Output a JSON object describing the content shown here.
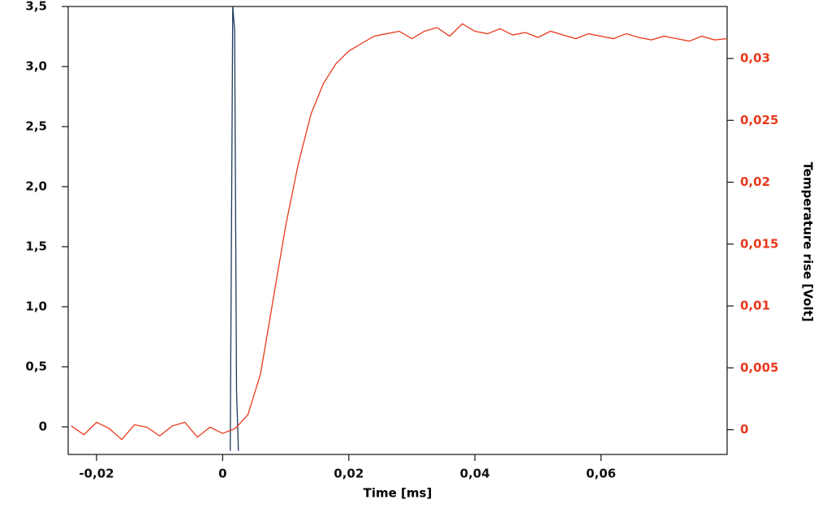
{
  "chart_data": {
    "type": "line",
    "x_label": "Time [ms]",
    "y2_label": "Temperature rise [Volt]",
    "xlim": [
      -0.0245,
      0.08
    ],
    "ylim": [
      -0.23,
      3.5
    ],
    "y2lim": [
      -0.002,
      0.0342
    ],
    "xticks": [
      {
        "value": -0.02,
        "label": "-0,02"
      },
      0,
      {
        "value": 0.02,
        "label": "0,02"
      },
      {
        "value": 0.04,
        "label": "0,04"
      },
      {
        "value": 0.06,
        "label": "0,06"
      }
    ],
    "yticks": [
      0,
      {
        "value": 0.5,
        "label": "0,5"
      },
      {
        "value": 1,
        "label": "1,0"
      },
      {
        "value": 1.5,
        "label": "1,5"
      },
      {
        "value": 2,
        "label": "2,0"
      },
      {
        "value": 2.5,
        "label": "2,5"
      },
      {
        "value": 3,
        "label": "3,0"
      },
      {
        "value": 3.5,
        "label": "3,5"
      }
    ],
    "y2ticks": [
      0,
      {
        "value": 0.005,
        "label": "0,005"
      },
      {
        "value": 0.01,
        "label": "0,01"
      },
      {
        "value": 0.015,
        "label": "0,015"
      },
      {
        "value": 0.02,
        "label": "0,02"
      },
      {
        "value": 0.025,
        "label": "0,025"
      },
      {
        "value": 0.03,
        "label": "0,03"
      }
    ],
    "y2_color": "#e8391d",
    "series": [
      {
        "color": "#1c3a5e",
        "axis": "y",
        "x": [
          0.0012,
          0.0016,
          0.0019,
          0.0022,
          0.0025
        ],
        "values": [
          -0.2,
          3.5,
          3.3,
          0.3,
          -0.2
        ]
      },
      {
        "color": "#e8391d",
        "axis": "y2",
        "x": [
          -0.024,
          -0.022,
          -0.02,
          -0.018,
          -0.016,
          -0.014,
          -0.012,
          -0.01,
          -0.008,
          -0.006,
          -0.004,
          -0.002,
          0,
          0.002,
          0.004,
          0.006,
          0.008,
          0.01,
          0.012,
          0.014,
          0.016,
          0.018,
          0.02,
          0.022,
          0.024,
          0.026,
          0.028,
          0.03,
          0.032,
          0.034,
          0.036,
          0.038,
          0.04,
          0.042,
          0.044,
          0.046,
          0.048,
          0.05,
          0.052,
          0.054,
          0.056,
          0.058,
          0.06,
          0.062,
          0.064,
          0.066,
          0.068,
          0.07,
          0.072,
          0.074,
          0.076,
          0.078,
          0.08
        ],
        "values": [
          0.0003,
          -0.0004,
          0.0006,
          0.0001,
          -0.0008,
          0.0004,
          0.0002,
          -0.0005,
          0.0003,
          0.0006,
          -0.0006,
          0.0002,
          -0.0003,
          0.0001,
          0.0012,
          0.0045,
          0.0105,
          0.0165,
          0.0215,
          0.0255,
          0.028,
          0.0296,
          0.0306,
          0.0312,
          0.0318,
          0.032,
          0.0322,
          0.0316,
          0.0322,
          0.0325,
          0.0318,
          0.0328,
          0.0322,
          0.032,
          0.0324,
          0.0319,
          0.0321,
          0.0317,
          0.0322,
          0.0319,
          0.0316,
          0.032,
          0.0318,
          0.0316,
          0.032,
          0.0317,
          0.0315,
          0.0318,
          0.0316,
          0.0314,
          0.0318,
          0.0315,
          0.0316
        ]
      }
    ]
  }
}
